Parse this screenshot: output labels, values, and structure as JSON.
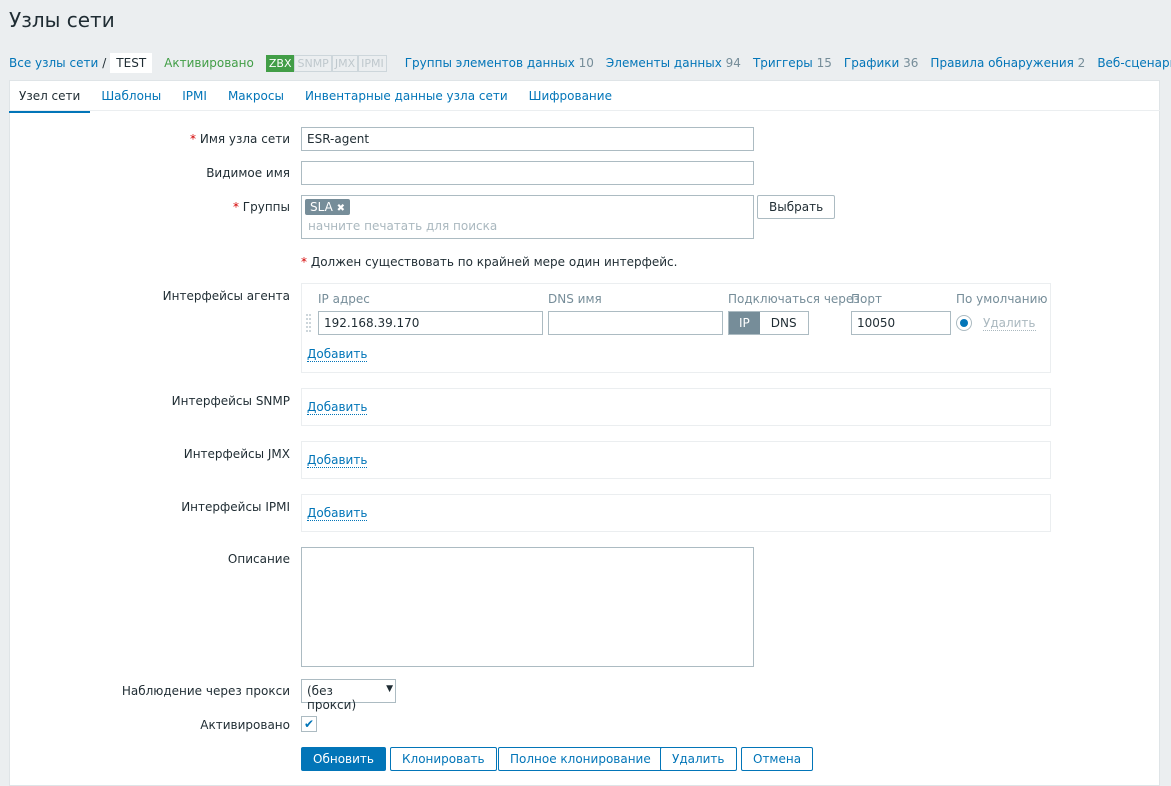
{
  "page_title": "Узлы сети",
  "nav": {
    "all_hosts": "Все узлы сети",
    "separator": "/",
    "host": "TEST",
    "status": "Активировано",
    "badges": [
      {
        "label": "ZBX",
        "active": true
      },
      {
        "label": "SNMP",
        "active": false
      },
      {
        "label": "JMX",
        "active": false
      },
      {
        "label": "IPMI",
        "active": false
      }
    ],
    "links": [
      {
        "label": "Группы элементов данных",
        "count": "10"
      },
      {
        "label": "Элементы данных",
        "count": "94"
      },
      {
        "label": "Триггеры",
        "count": "15"
      },
      {
        "label": "Графики",
        "count": "36"
      },
      {
        "label": "Правила обнаружения",
        "count": "2"
      },
      {
        "label": "Веб-сценарии",
        "count": ""
      }
    ]
  },
  "tabs": [
    "Узел сети",
    "Шаблоны",
    "IPMI",
    "Макросы",
    "Инвентарные данные узла сети",
    "Шифрование"
  ],
  "form": {
    "required_mark": "*",
    "host_name_label": "Имя узла сети",
    "host_name_value": "ESR-agent",
    "visible_name_label": "Видимое имя",
    "visible_name_value": "",
    "groups_label": "Группы",
    "group_tag": "SLA",
    "group_tag_remove": "✖",
    "groups_placeholder": "начните печатать для поиска",
    "select_button": "Выбрать",
    "interface_warning": "Должен существовать по крайней мере один интерфейс.",
    "agent_label": "Интерфейсы агента",
    "col_ip": "IP адрес",
    "col_dns": "DNS имя",
    "col_connect": "Подключаться через",
    "col_port": "Порт",
    "col_default": "По умолчанию",
    "ip_value": "192.168.39.170",
    "dns_value": "",
    "connect_ip": "IP",
    "connect_dns": "DNS",
    "port_value": "10050",
    "remove": "Удалить",
    "add": "Добавить",
    "snmp_label": "Интерфейсы SNMP",
    "jmx_label": "Интерфейсы JMX",
    "ipmi_label": "Интерфейсы IPMI",
    "description_label": "Описание",
    "description_value": "",
    "proxy_label": "Наблюдение через прокси",
    "proxy_value": "(без прокси)",
    "enabled_label": "Активировано",
    "enabled": true
  },
  "buttons": {
    "update": "Обновить",
    "clone": "Клонировать",
    "full_clone": "Полное клонирование",
    "delete": "Удалить",
    "cancel": "Отмена"
  }
}
